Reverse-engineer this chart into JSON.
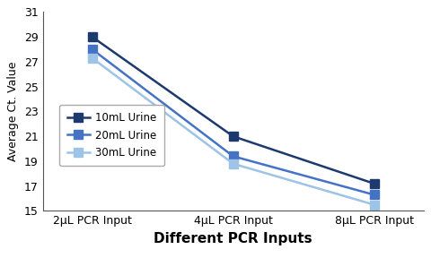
{
  "categories": [
    "2μL PCR Input",
    "4μL PCR Input",
    "8μL PCR Input"
  ],
  "series": [
    {
      "label": "10mL Urine",
      "values": [
        29.0,
        21.0,
        17.2
      ],
      "color": "#1c3a6e",
      "marker": "s",
      "markersize": 7
    },
    {
      "label": "20mL Urine",
      "values": [
        28.0,
        19.4,
        16.3
      ],
      "color": "#4472c4",
      "marker": "s",
      "markersize": 7
    },
    {
      "label": "30mL Urine",
      "values": [
        27.3,
        18.8,
        15.5
      ],
      "color": "#9dc3e6",
      "marker": "s",
      "markersize": 7
    }
  ],
  "xlabel": "Different PCR Inputs",
  "ylabel": "Average Ct. Value",
  "ylim": [
    15,
    31
  ],
  "yticks": [
    15,
    17,
    19,
    21,
    23,
    25,
    27,
    29,
    31
  ],
  "background_color": "#ffffff",
  "linewidth": 1.8,
  "tick_fontsize": 9,
  "ylabel_fontsize": 9,
  "xlabel_fontsize": 11,
  "legend_fontsize": 8.5
}
